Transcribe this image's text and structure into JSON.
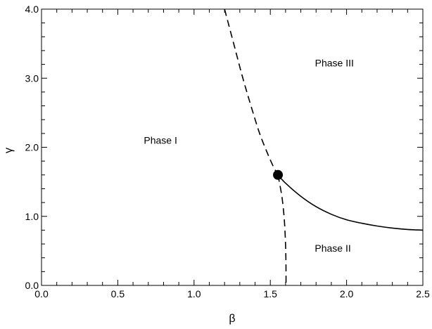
{
  "chart_data": {
    "type": "line",
    "xlabel": "β",
    "ylabel": "γ",
    "xlim": [
      0.0,
      2.5
    ],
    "ylim": [
      0.0,
      4.0
    ],
    "xticks": [
      {
        "value": 0.0,
        "label": "0.0"
      },
      {
        "value": 0.5,
        "label": "0.5"
      },
      {
        "value": 1.0,
        "label": "1.0"
      },
      {
        "value": 1.5,
        "label": "1.5"
      },
      {
        "value": 2.0,
        "label": "2.0"
      },
      {
        "value": 2.5,
        "label": "2.5"
      }
    ],
    "yticks": [
      {
        "value": 0.0,
        "label": "0.0"
      },
      {
        "value": 1.0,
        "label": "1.0"
      },
      {
        "value": 2.0,
        "label": "2.0"
      },
      {
        "value": 3.0,
        "label": "3.0"
      },
      {
        "value": 4.0,
        "label": "4.0"
      }
    ],
    "grid": false,
    "series": [
      {
        "style": "dashed",
        "color": "#000000",
        "x": [
          1.2,
          1.26,
          1.32,
          1.38,
          1.43,
          1.48,
          1.52,
          1.55
        ],
        "y": [
          4.0,
          3.5,
          3.0,
          2.55,
          2.2,
          1.92,
          1.72,
          1.6
        ]
      },
      {
        "style": "dashed",
        "color": "#000000",
        "x": [
          1.55,
          1.575,
          1.59,
          1.598,
          1.602,
          1.603,
          1.603
        ],
        "y": [
          1.6,
          1.3,
          1.0,
          0.7,
          0.4,
          0.15,
          0.0
        ]
      },
      {
        "style": "solid",
        "color": "#000000",
        "x": [
          1.55,
          1.6,
          1.7,
          1.8,
          1.9,
          2.0,
          2.1,
          2.2,
          2.3,
          2.4,
          2.5
        ],
        "y": [
          1.6,
          1.48,
          1.29,
          1.14,
          1.03,
          0.95,
          0.9,
          0.86,
          0.83,
          0.81,
          0.8
        ]
      }
    ],
    "points": [
      {
        "x": 1.55,
        "y": 1.6,
        "marker": "filled-circle"
      }
    ],
    "annotations": [
      {
        "text": "Phase I",
        "x": 0.78,
        "y": 2.05
      },
      {
        "text": "Phase II",
        "x": 1.91,
        "y": 0.49
      },
      {
        "text": "Phase III",
        "x": 1.92,
        "y": 3.17
      }
    ]
  }
}
